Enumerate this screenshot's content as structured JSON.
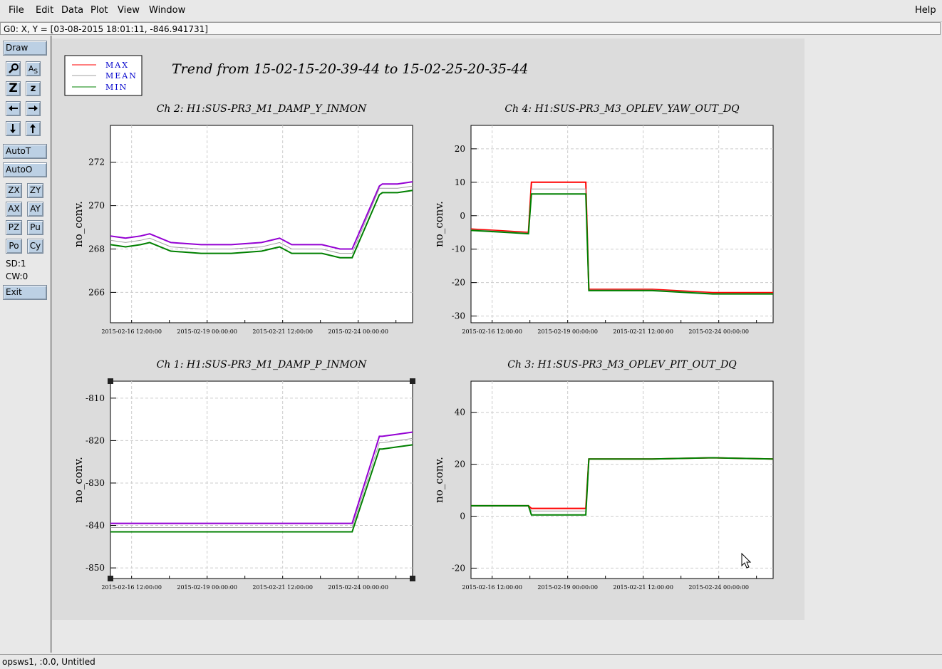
{
  "menu": {
    "items": [
      "File",
      "Edit",
      "Data",
      "Plot",
      "View",
      "Window"
    ],
    "help": "Help"
  },
  "coord_readout": "G0: X, Y = [03-08-2015 18:01:11, -846.941731]",
  "toolbar": {
    "draw": "Draw",
    "autot": "AutoT",
    "autoo": "AutoO",
    "zx": "ZX",
    "zy": "ZY",
    "ax": "AX",
    "ay": "AY",
    "pz": "PZ",
    "pu": "Pu",
    "po": "Po",
    "cy": "Cy",
    "sd": "SD:1",
    "cw": "CW:0",
    "exit": "Exit"
  },
  "status_bottom": "opsws1, :0.0, Untitled",
  "colors": {
    "max": "#ff0000",
    "mean": "#a0a0a0",
    "min": "#008000",
    "purple": "#9400d3",
    "plot_bg": "#ffffff",
    "panel_bg": "#dcdcdc"
  },
  "chart_data": {
    "title": "Trend from 15-02-15-20-39-44 to 15-02-25-20-35-44",
    "legend": [
      "MAX",
      "MEAN",
      "MIN"
    ],
    "x_ticks": [
      "2015-02-16 12:00:00",
      "2015-02-19 00:00:00",
      "2015-02-21 12:00:00",
      "2015-02-24 00:00:00"
    ],
    "charts": [
      {
        "type": "line",
        "title": "Ch 2: H1:SUS-PR3_M1_DAMP_Y_INMON",
        "ylabel": "no_conv.",
        "yticks": [
          266,
          268,
          270,
          272
        ],
        "ylim": [
          264.6,
          273.7
        ],
        "x": [
          0,
          0.05,
          0.1,
          0.13,
          0.2,
          0.3,
          0.4,
          0.5,
          0.56,
          0.6,
          0.7,
          0.76,
          0.8,
          0.89,
          0.9,
          0.95,
          1
        ],
        "series": [
          {
            "name": "MAX",
            "values": [
              268.6,
              268.5,
              268.6,
              268.7,
              268.3,
              268.2,
              268.2,
              268.3,
              268.5,
              268.2,
              268.2,
              268.0,
              268.0,
              270.9,
              271.0,
              271.0,
              271.1
            ]
          },
          {
            "name": "MEAN",
            "values": [
              268.4,
              268.3,
              268.4,
              268.5,
              268.1,
              268.0,
              268.0,
              268.1,
              268.3,
              268.0,
              268.0,
              267.8,
              267.8,
              270.8,
              270.8,
              270.8,
              270.9
            ]
          },
          {
            "name": "MIN",
            "values": [
              268.2,
              268.1,
              268.2,
              268.3,
              267.9,
              267.8,
              267.8,
              267.9,
              268.1,
              267.8,
              267.8,
              267.6,
              267.6,
              270.5,
              270.6,
              270.6,
              270.7
            ]
          }
        ]
      },
      {
        "type": "line",
        "title": "Ch 4: H1:SUS-PR3_M3_OPLEV_YAW_OUT_DQ",
        "ylabel": "no_conv.",
        "yticks": [
          -30,
          -20,
          -10,
          0,
          10,
          20
        ],
        "ylim": [
          -32,
          27
        ],
        "x": [
          0,
          0.1,
          0.19,
          0.2,
          0.38,
          0.39,
          0.6,
          0.8,
          1
        ],
        "series": [
          {
            "name": "MAX",
            "values": [
              -4,
              -4.5,
              -5,
              10,
              10,
              -22,
              -22,
              -23,
              -23
            ]
          },
          {
            "name": "MEAN",
            "values": [
              -4.2,
              -4.7,
              -5.2,
              8,
              8,
              -22.2,
              -22.2,
              -23.2,
              -23.2
            ]
          },
          {
            "name": "MIN",
            "values": [
              -4.4,
              -4.9,
              -5.4,
              6.5,
              6.5,
              -22.4,
              -22.4,
              -23.4,
              -23.4
            ]
          }
        ]
      },
      {
        "type": "line",
        "title": "Ch 1: H1:SUS-PR3_M1_DAMP_P_INMON",
        "ylabel": "no_conv.",
        "yticks": [
          -850,
          -840,
          -830,
          -820,
          -810
        ],
        "ylim": [
          -852.5,
          -806
        ],
        "x": [
          0,
          0.1,
          0.2,
          0.3,
          0.4,
          0.5,
          0.6,
          0.7,
          0.8,
          0.89,
          0.9,
          0.95,
          1
        ],
        "series": [
          {
            "name": "MAX",
            "values": [
              -839.5,
              -839.5,
              -839.5,
              -839.5,
              -839.5,
              -839.5,
              -839.5,
              -839.5,
              -839.5,
              -819,
              -819,
              -818.5,
              -818
            ]
          },
          {
            "name": "MEAN",
            "values": [
              -840.5,
              -840.5,
              -840.5,
              -840.5,
              -840.5,
              -840.5,
              -840.5,
              -840.5,
              -840.5,
              -820.5,
              -820.5,
              -820,
              -819.5
            ]
          },
          {
            "name": "MIN",
            "values": [
              -841.5,
              -841.5,
              -841.5,
              -841.5,
              -841.5,
              -841.5,
              -841.5,
              -841.5,
              -841.5,
              -822,
              -822,
              -821.5,
              -821
            ]
          }
        ]
      },
      {
        "type": "line",
        "title": "Ch 3: H1:SUS-PR3_M3_OPLEV_PIT_OUT_DQ",
        "ylabel": "no_conv.",
        "yticks": [
          -20,
          0,
          20,
          40
        ],
        "ylim": [
          -24,
          52
        ],
        "x": [
          0,
          0.1,
          0.19,
          0.2,
          0.38,
          0.39,
          0.6,
          0.8,
          1
        ],
        "series": [
          {
            "name": "MAX",
            "values": [
              4,
              4,
              4,
              3,
              3,
              22,
              22,
              22.5,
              22
            ]
          },
          {
            "name": "MEAN",
            "values": [
              4,
              4,
              4,
              2,
              2,
              22,
              22,
              22.5,
              22
            ]
          },
          {
            "name": "MIN",
            "values": [
              4,
              4,
              4,
              0.5,
              0.5,
              22,
              22,
              22.5,
              22
            ]
          }
        ]
      }
    ]
  }
}
